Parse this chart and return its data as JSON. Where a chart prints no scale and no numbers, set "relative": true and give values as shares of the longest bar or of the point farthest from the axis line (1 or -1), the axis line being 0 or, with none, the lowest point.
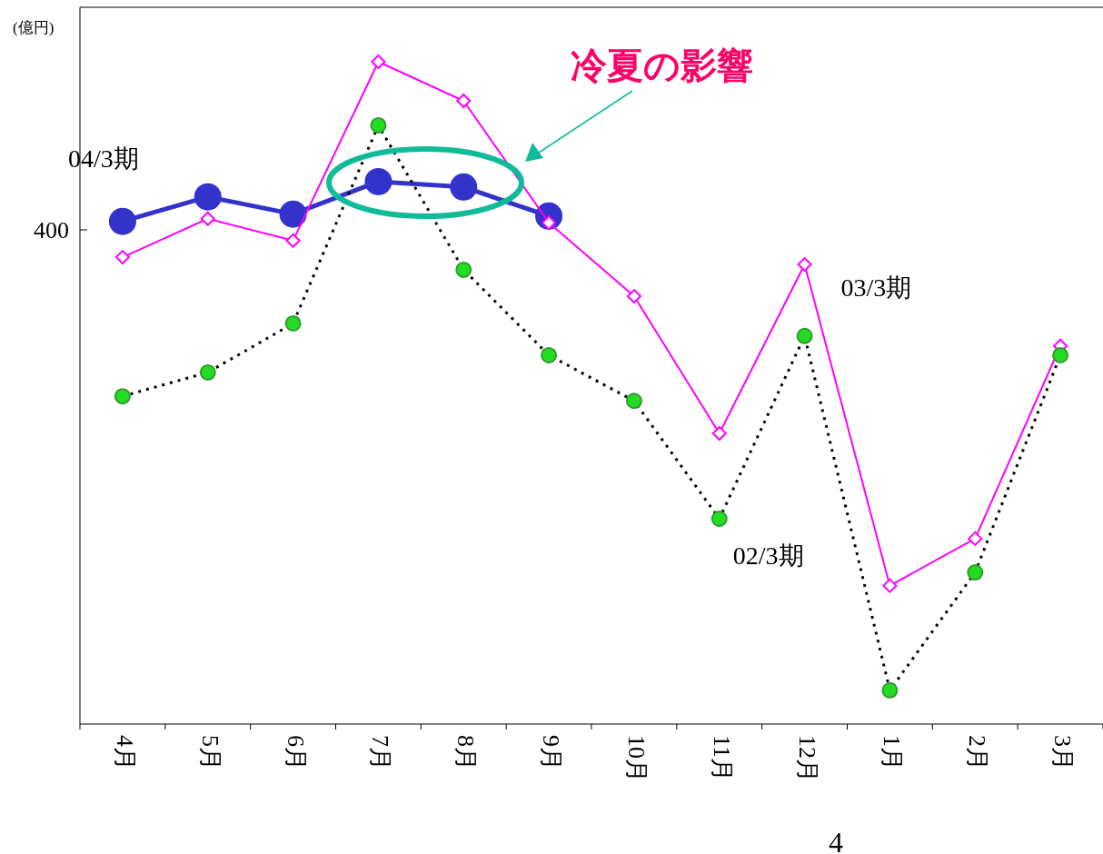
{
  "chart_data": {
    "type": "line",
    "relative": true,
    "ylabel": "(億円)",
    "categories": [
      "4月",
      "5月",
      "6月",
      "7月",
      "8月",
      "9月",
      "10月",
      "11月",
      "12月",
      "1月",
      "2月",
      "3月"
    ],
    "series": [
      {
        "name": "04/3期",
        "color": "#3333cc",
        "marker": "circle",
        "line_style": "solid",
        "values": [
          0.759,
          0.796,
          0.77,
          0.819,
          0.811,
          0.767,
          null,
          null,
          null,
          null,
          null,
          null
        ]
      },
      {
        "name": "03/3期",
        "color": "#ff00ff",
        "marker": "diamond",
        "line_style": "solid",
        "values": [
          0.705,
          0.763,
          0.73,
          1,
          0.941,
          0.757,
          0.646,
          0.439,
          0.694,
          0.209,
          0.28,
          0.571
        ]
      },
      {
        "name": "02/3期",
        "color": "#22dd22",
        "marker": "circle",
        "line_style": "dotted",
        "values": [
          0.495,
          0.531,
          0.605,
          0.904,
          0.686,
          0.557,
          0.488,
          0.31,
          0.586,
          0.051,
          0.229,
          0.557
        ]
      }
    ],
    "annotations": [
      "400",
      "冷夏の影響",
      "4"
    ]
  }
}
